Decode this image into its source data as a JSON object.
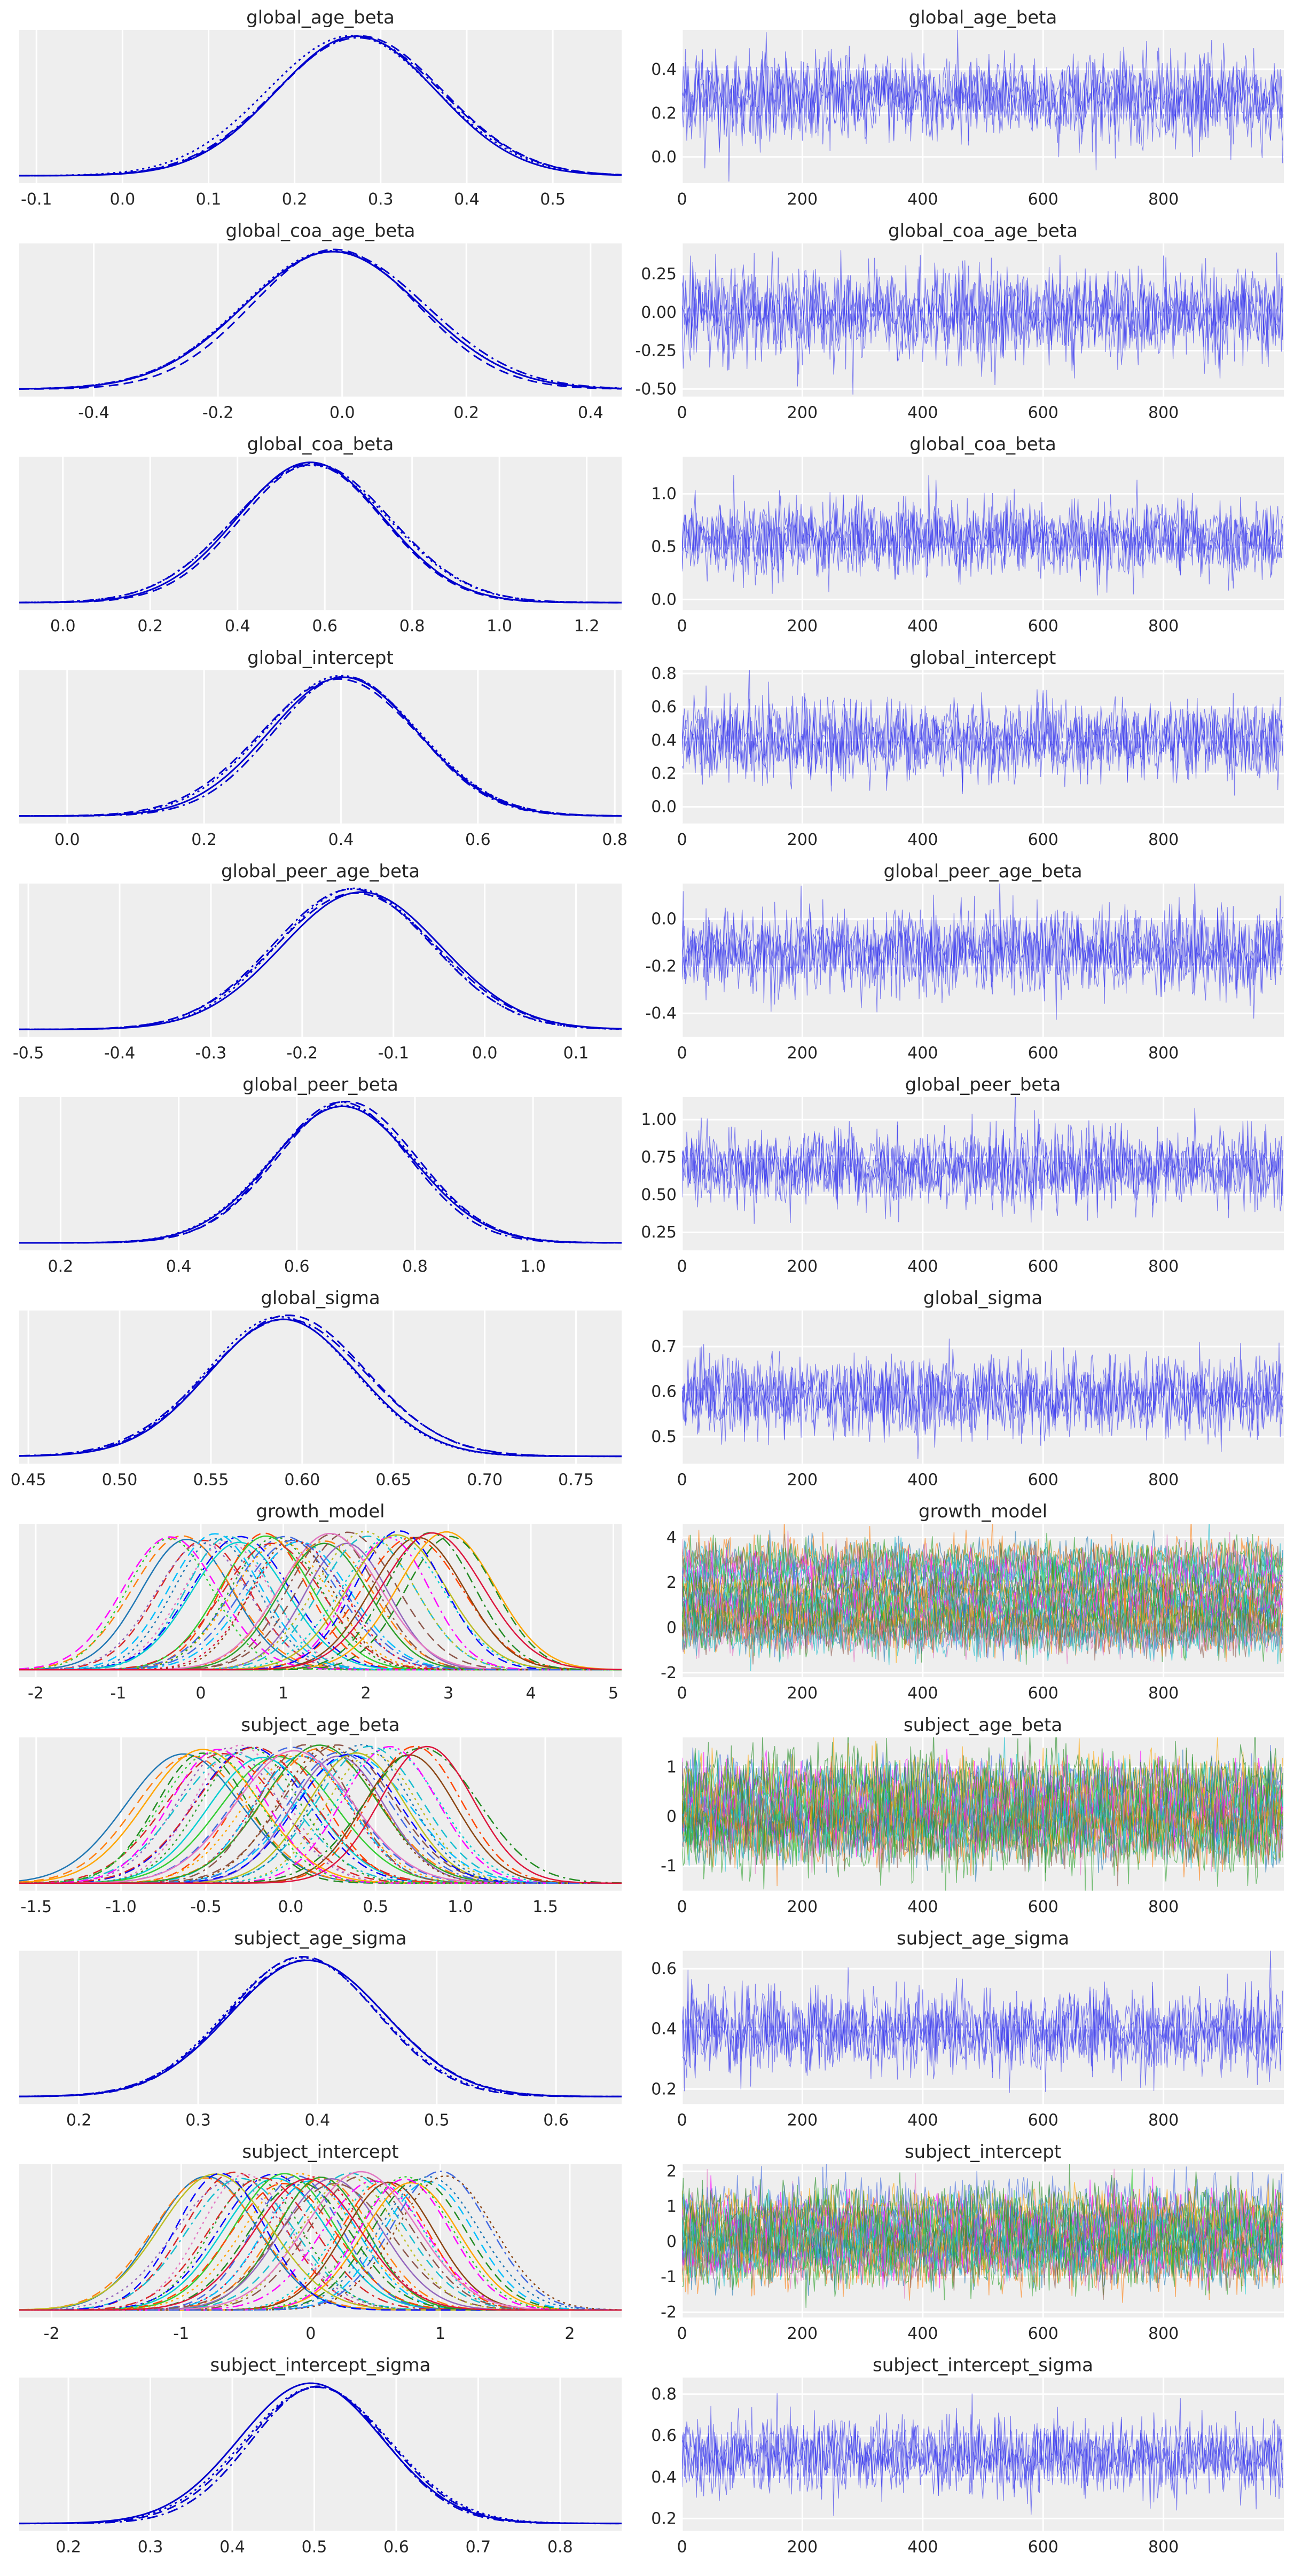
{
  "chart_data": [
    {
      "type": "line",
      "variable": "global_age_beta",
      "kde": {
        "title": "global_age_beta",
        "xlim": [
          -0.12,
          0.58
        ],
        "xticks": [
          "-0.1",
          "0.0",
          "0.1",
          "0.2",
          "0.3",
          "0.4",
          "0.5"
        ],
        "xtick_values": [
          -0.1,
          0.0,
          0.1,
          0.2,
          0.3,
          0.4,
          0.5
        ],
        "mean": 0.27,
        "sd": 0.095,
        "chains": 4,
        "color": "#0000cc"
      },
      "trace": {
        "title": "global_age_beta",
        "draws": 1000,
        "xticks": [
          "0",
          "200",
          "400",
          "600",
          "800"
        ],
        "xtick_values": [
          0,
          200,
          400,
          600,
          800
        ],
        "ylim": [
          -0.12,
          0.58
        ],
        "yticks": [
          "0.0",
          "0.2",
          "0.4"
        ],
        "ytick_values": [
          0.0,
          0.2,
          0.4
        ],
        "mean": 0.27,
        "sd": 0.095,
        "color": "#3333ee"
      }
    },
    {
      "type": "line",
      "variable": "global_coa_age_beta",
      "kde": {
        "title": "global_coa_age_beta",
        "xlim": [
          -0.52,
          0.45
        ],
        "xticks": [
          "-0.4",
          "-0.2",
          "0.0",
          "0.2",
          "0.4"
        ],
        "xtick_values": [
          -0.4,
          -0.2,
          0.0,
          0.2,
          0.4
        ],
        "mean": -0.01,
        "sd": 0.14,
        "chains": 4,
        "color": "#0000cc"
      },
      "trace": {
        "title": "global_coa_age_beta",
        "draws": 1000,
        "xticks": [
          "0",
          "200",
          "400",
          "600",
          "800"
        ],
        "xtick_values": [
          0,
          200,
          400,
          600,
          800
        ],
        "ylim": [
          -0.55,
          0.45
        ],
        "yticks": [
          "-0.50",
          "-0.25",
          "0.00",
          "0.25"
        ],
        "ytick_values": [
          -0.5,
          -0.25,
          0.0,
          0.25
        ],
        "mean": -0.01,
        "sd": 0.14,
        "color": "#3333ee"
      }
    },
    {
      "type": "line",
      "variable": "global_coa_beta",
      "kde": {
        "title": "global_coa_beta",
        "xlim": [
          -0.1,
          1.28
        ],
        "xticks": [
          "0.0",
          "0.2",
          "0.4",
          "0.6",
          "0.8",
          "1.0",
          "1.2"
        ],
        "xtick_values": [
          0.0,
          0.2,
          0.4,
          0.6,
          0.8,
          1.0,
          1.2
        ],
        "mean": 0.57,
        "sd": 0.17,
        "chains": 4,
        "color": "#0000cc"
      },
      "trace": {
        "title": "global_coa_beta",
        "draws": 1000,
        "xticks": [
          "0",
          "200",
          "400",
          "600",
          "800"
        ],
        "xtick_values": [
          0,
          200,
          400,
          600,
          800
        ],
        "ylim": [
          -0.1,
          1.35
        ],
        "yticks": [
          "0.0",
          "0.5",
          "1.0"
        ],
        "ytick_values": [
          0.0,
          0.5,
          1.0
        ],
        "mean": 0.57,
        "sd": 0.17,
        "color": "#3333ee"
      }
    },
    {
      "type": "line",
      "variable": "global_intercept",
      "kde": {
        "title": "global_intercept",
        "xlim": [
          -0.07,
          0.81
        ],
        "xticks": [
          "0.0",
          "0.2",
          "0.4",
          "0.6",
          "0.8"
        ],
        "xtick_values": [
          0.0,
          0.2,
          0.4,
          0.6,
          0.8
        ],
        "mean": 0.4,
        "sd": 0.11,
        "chains": 4,
        "color": "#0000cc"
      },
      "trace": {
        "title": "global_intercept",
        "draws": 1000,
        "xticks": [
          "0",
          "200",
          "400",
          "600",
          "800"
        ],
        "xtick_values": [
          0,
          200,
          400,
          600,
          800
        ],
        "ylim": [
          -0.1,
          0.82
        ],
        "yticks": [
          "0.0",
          "0.2",
          "0.4",
          "0.6",
          "0.8"
        ],
        "ytick_values": [
          0.0,
          0.2,
          0.4,
          0.6,
          0.8
        ],
        "mean": 0.4,
        "sd": 0.11,
        "color": "#3333ee"
      }
    },
    {
      "type": "line",
      "variable": "global_peer_age_beta",
      "kde": {
        "title": "global_peer_age_beta",
        "xlim": [
          -0.51,
          0.15
        ],
        "xticks": [
          "-0.5",
          "-0.4",
          "-0.3",
          "-0.2",
          "-0.1",
          "0.0",
          "0.1"
        ],
        "xtick_values": [
          -0.5,
          -0.4,
          -0.3,
          -0.2,
          -0.1,
          0.0,
          0.1
        ],
        "mean": -0.14,
        "sd": 0.085,
        "chains": 4,
        "color": "#0000cc"
      },
      "trace": {
        "title": "global_peer_age_beta",
        "draws": 1000,
        "xticks": [
          "0",
          "200",
          "400",
          "600",
          "800"
        ],
        "xtick_values": [
          0,
          200,
          400,
          600,
          800
        ],
        "ylim": [
          -0.5,
          0.15
        ],
        "yticks": [
          "-0.4",
          "-0.2",
          "0.0"
        ],
        "ytick_values": [
          -0.4,
          -0.2,
          0.0
        ],
        "mean": -0.14,
        "sd": 0.085,
        "color": "#3333ee"
      }
    },
    {
      "type": "line",
      "variable": "global_peer_beta",
      "kde": {
        "title": "global_peer_beta",
        "xlim": [
          0.13,
          1.15
        ],
        "xticks": [
          "0.2",
          "0.4",
          "0.6",
          "0.8",
          "1.0"
        ],
        "xtick_values": [
          0.2,
          0.4,
          0.6,
          0.8,
          1.0
        ],
        "mean": 0.68,
        "sd": 0.12,
        "chains": 4,
        "color": "#0000cc"
      },
      "trace": {
        "title": "global_peer_beta",
        "draws": 1000,
        "xticks": [
          "0",
          "200",
          "400",
          "600",
          "800"
        ],
        "xtick_values": [
          0,
          200,
          400,
          600,
          800
        ],
        "ylim": [
          0.13,
          1.15
        ],
        "yticks": [
          "0.25",
          "0.50",
          "0.75",
          "1.00"
        ],
        "ytick_values": [
          0.25,
          0.5,
          0.75,
          1.0
        ],
        "mean": 0.68,
        "sd": 0.12,
        "color": "#3333ee"
      }
    },
    {
      "type": "line",
      "variable": "global_sigma",
      "kde": {
        "title": "global_sigma",
        "xlim": [
          0.445,
          0.775
        ],
        "xticks": [
          "0.45",
          "0.50",
          "0.55",
          "0.60",
          "0.65",
          "0.70",
          "0.75"
        ],
        "xtick_values": [
          0.45,
          0.5,
          0.55,
          0.6,
          0.65,
          0.7,
          0.75
        ],
        "mean": 0.59,
        "sd": 0.042,
        "chains": 4,
        "color": "#0000cc"
      },
      "trace": {
        "title": "global_sigma",
        "draws": 1000,
        "xticks": [
          "0",
          "200",
          "400",
          "600",
          "800"
        ],
        "xtick_values": [
          0,
          200,
          400,
          600,
          800
        ],
        "ylim": [
          0.44,
          0.78
        ],
        "yticks": [
          "0.5",
          "0.6",
          "0.7"
        ],
        "ytick_values": [
          0.5,
          0.6,
          0.7
        ],
        "mean": 0.59,
        "sd": 0.042,
        "color": "#3333ee"
      }
    },
    {
      "type": "line",
      "variable": "growth_model",
      "kde": {
        "title": "growth_model",
        "xlim": [
          -2.2,
          5.1
        ],
        "xticks": [
          "-2",
          "-1",
          "0",
          "1",
          "2",
          "3",
          "4",
          "5"
        ],
        "xtick_values": [
          -2,
          -1,
          0,
          1,
          2,
          3,
          4,
          5
        ],
        "multi": true,
        "centers": [
          -0.2,
          0.0,
          0.3,
          0.5,
          0.8,
          1.0,
          1.2,
          1.5,
          1.8,
          2.0,
          2.3,
          2.6,
          3.0,
          0.2,
          0.9,
          1.6,
          2.4,
          -0.4,
          1.1,
          2.8
        ],
        "sd": 0.55
      },
      "trace": {
        "title": "growth_model",
        "draws": 1000,
        "xticks": [
          "0",
          "200",
          "400",
          "600",
          "800"
        ],
        "xtick_values": [
          0,
          200,
          400,
          600,
          800
        ],
        "ylim": [
          -2.2,
          4.6
        ],
        "yticks": [
          "-2",
          "0",
          "2",
          "4"
        ],
        "ytick_values": [
          -2,
          0,
          2,
          4
        ],
        "multi": true,
        "centers": [
          3.0,
          2.6,
          2.2,
          1.8,
          1.2,
          1.0,
          0.6,
          0.2,
          0.0,
          -0.3
        ],
        "sd": 0.5
      }
    },
    {
      "type": "line",
      "variable": "subject_age_beta",
      "kde": {
        "title": "subject_age_beta",
        "xlim": [
          -1.6,
          1.95
        ],
        "xticks": [
          "-1.5",
          "-1.0",
          "-0.5",
          "0.0",
          "0.5",
          "1.0",
          "1.5"
        ],
        "xtick_values": [
          -1.5,
          -1.0,
          -0.5,
          0.0,
          0.5,
          1.0,
          1.5
        ],
        "multi": true,
        "centers": [
          -0.6,
          -0.4,
          -0.3,
          -0.2,
          -0.1,
          0.0,
          0.1,
          0.2,
          0.3,
          0.5,
          0.6,
          0.7,
          -0.5,
          0.4,
          -0.25,
          0.05,
          0.35,
          -0.45,
          0.25,
          0.8
        ],
        "sd": 0.3
      },
      "trace": {
        "title": "subject_age_beta",
        "draws": 1000,
        "xticks": [
          "0",
          "200",
          "400",
          "600",
          "800"
        ],
        "xtick_values": [
          0,
          200,
          400,
          600,
          800
        ],
        "ylim": [
          -1.5,
          1.6
        ],
        "yticks": [
          "-1",
          "0",
          "1"
        ],
        "ytick_values": [
          -1,
          0,
          1
        ],
        "multi": true,
        "centers": [
          -0.5,
          -0.3,
          -0.1,
          0.0,
          0.1,
          0.3,
          0.5,
          0.7
        ],
        "sd": 0.3
      }
    },
    {
      "type": "line",
      "variable": "subject_age_sigma",
      "kde": {
        "title": "subject_age_sigma",
        "xlim": [
          0.15,
          0.655
        ],
        "xticks": [
          "0.2",
          "0.3",
          "0.4",
          "0.5",
          "0.6"
        ],
        "xtick_values": [
          0.2,
          0.3,
          0.4,
          0.5,
          0.6
        ],
        "mean": 0.39,
        "sd": 0.065,
        "chains": 4,
        "color": "#0000cc"
      },
      "trace": {
        "title": "subject_age_sigma",
        "draws": 1000,
        "xticks": [
          "0",
          "200",
          "400",
          "600",
          "800"
        ],
        "xtick_values": [
          0,
          200,
          400,
          600,
          800
        ],
        "ylim": [
          0.15,
          0.66
        ],
        "yticks": [
          "0.2",
          "0.4",
          "0.6"
        ],
        "ytick_values": [
          0.2,
          0.4,
          0.6
        ],
        "mean": 0.39,
        "sd": 0.065,
        "color": "#3333ee"
      }
    },
    {
      "type": "line",
      "variable": "subject_intercept",
      "kde": {
        "title": "subject_intercept",
        "xlim": [
          -2.25,
          2.4
        ],
        "xticks": [
          "-2",
          "-1",
          "0",
          "1",
          "2"
        ],
        "xtick_values": [
          -2,
          -1,
          0,
          1,
          2
        ],
        "multi": true,
        "centers": [
          -0.8,
          -0.6,
          -0.5,
          -0.3,
          -0.2,
          -0.1,
          0.0,
          0.1,
          0.2,
          0.3,
          0.5,
          0.6,
          0.8,
          0.9,
          -0.4,
          0.4,
          -0.7,
          0.7,
          1.0,
          -0.05
        ],
        "sd": 0.38
      },
      "trace": {
        "title": "subject_intercept",
        "draws": 1000,
        "xticks": [
          "0",
          "200",
          "400",
          "600",
          "800"
        ],
        "xtick_values": [
          0,
          200,
          400,
          600,
          800
        ],
        "ylim": [
          -2.15,
          2.2
        ],
        "yticks": [
          "-2",
          "-1",
          "0",
          "1",
          "2"
        ],
        "ytick_values": [
          -2,
          -1,
          0,
          1,
          2
        ],
        "multi": true,
        "centers": [
          -0.7,
          -0.4,
          -0.2,
          0.0,
          0.2,
          0.4,
          0.6,
          0.9
        ],
        "sd": 0.38
      }
    },
    {
      "type": "line",
      "variable": "subject_intercept_sigma",
      "kde": {
        "title": "subject_intercept_sigma",
        "xlim": [
          0.14,
          0.875
        ],
        "xticks": [
          "0.2",
          "0.3",
          "0.4",
          "0.5",
          "0.6",
          "0.7",
          "0.8"
        ],
        "xtick_values": [
          0.2,
          0.3,
          0.4,
          0.5,
          0.6,
          0.7,
          0.8
        ],
        "mean": 0.5,
        "sd": 0.085,
        "chains": 4,
        "color": "#0000cc"
      },
      "trace": {
        "title": "subject_intercept_sigma",
        "draws": 1000,
        "xticks": [
          "0",
          "200",
          "400",
          "600",
          "800"
        ],
        "xtick_values": [
          0,
          200,
          400,
          600,
          800
        ],
        "ylim": [
          0.14,
          0.88
        ],
        "yticks": [
          "0.2",
          "0.4",
          "0.6",
          "0.8"
        ],
        "ytick_values": [
          0.2,
          0.4,
          0.6,
          0.8
        ],
        "mean": 0.5,
        "sd": 0.085,
        "color": "#3333ee"
      }
    }
  ],
  "palette": [
    "#1f77b4",
    "#ff7f0e",
    "#2ca02c",
    "#d62728",
    "#9467bd",
    "#8c564b",
    "#e377c2",
    "#17becf",
    "#bcbd22",
    "#0000ff",
    "#00ced1",
    "#ff00ff",
    "#32cd32",
    "#ff4500",
    "#8b4513",
    "#4169e1",
    "#ffa500",
    "#228b22",
    "#dc143c",
    "#00bfff"
  ]
}
